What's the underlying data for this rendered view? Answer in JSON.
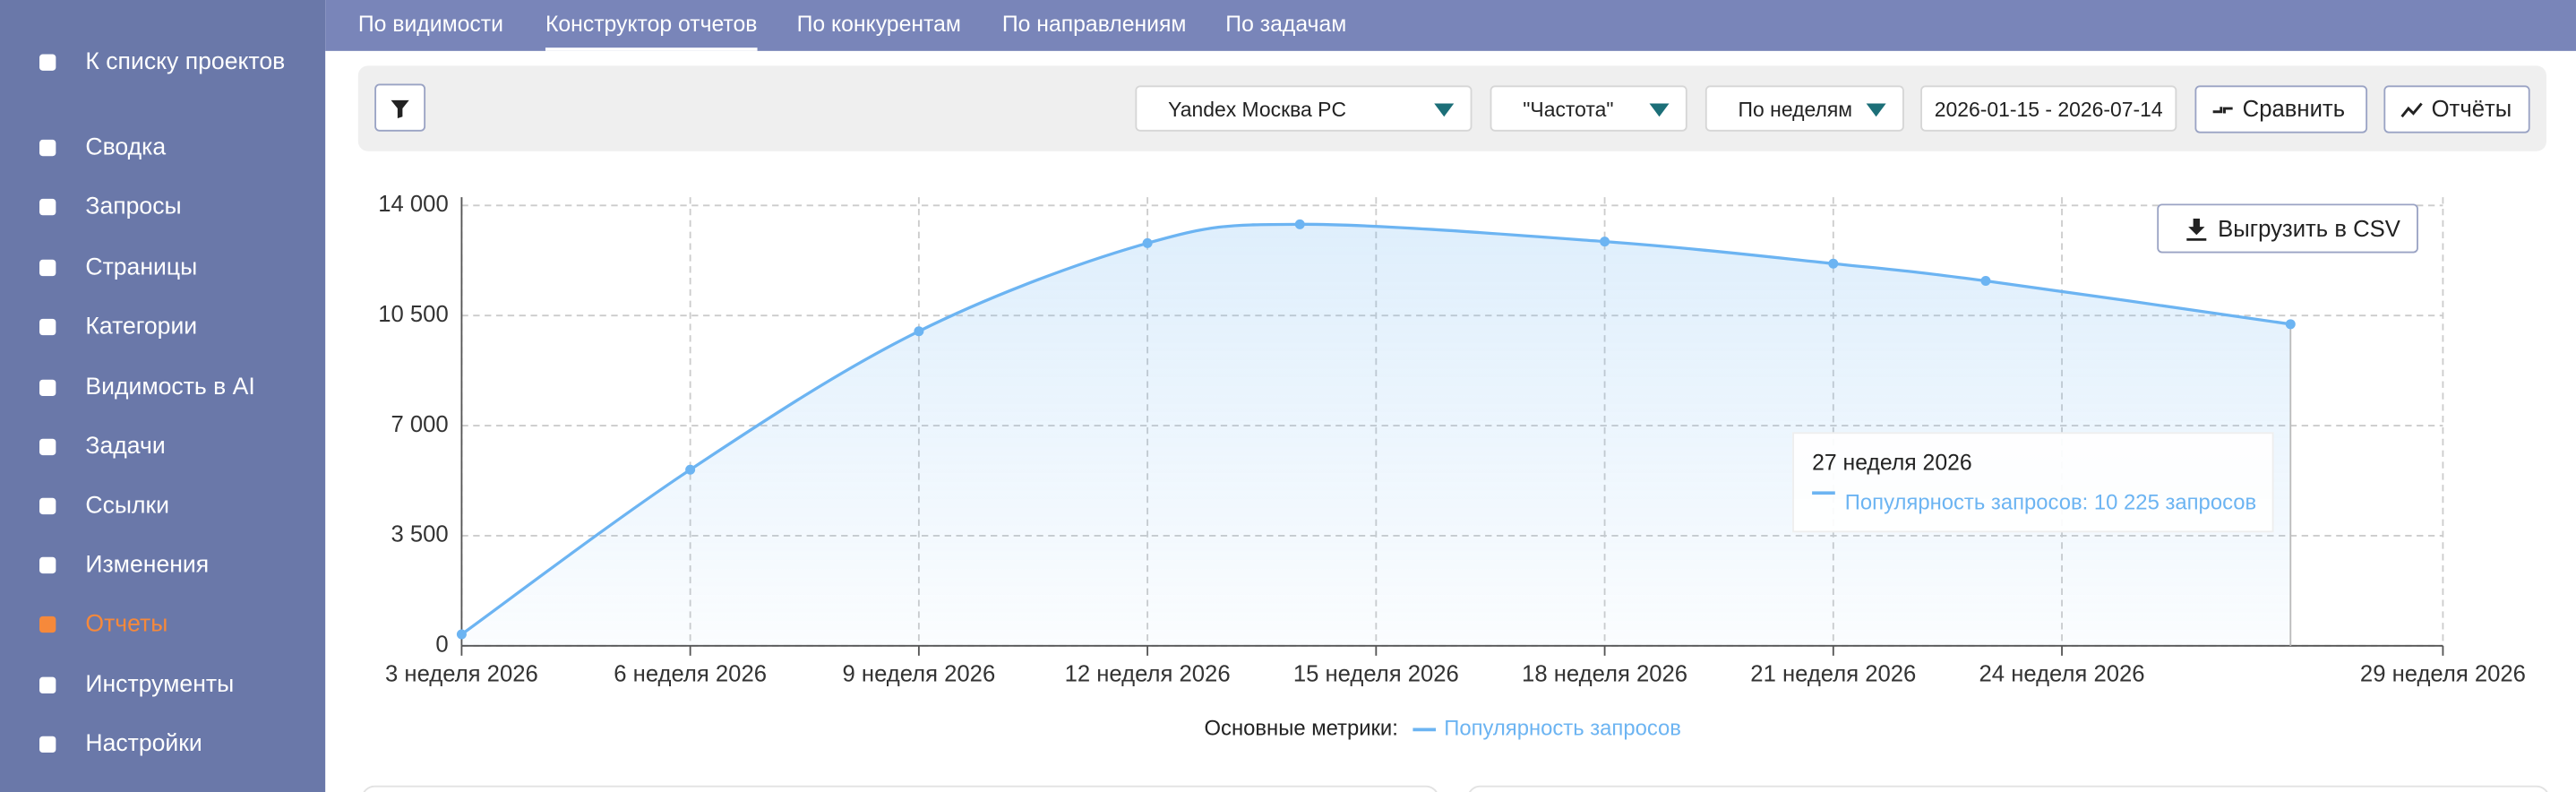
{
  "sidebar": {
    "items": [
      "К списку проектов",
      "Сводка",
      "Запросы",
      "Страницы",
      "Категории",
      "Видимость в AI",
      "Задачи",
      "Ссылки",
      "Изменения",
      "Отчеты",
      "Инструменты",
      "Настройки"
    ],
    "active": 9
  },
  "tabs": {
    "items": [
      "По видимости",
      "Конструктор отчетов",
      "По конкурентам",
      "По направлениям",
      "По задачам"
    ],
    "active": 1
  },
  "toolbar": {
    "region": "Yandex Москва PC",
    "metric": "\"Частота\"",
    "period": "По неделям",
    "dates": "2026-01-15 - 2026-07-14",
    "compare": "Сравнить",
    "reports": "Отчёты"
  },
  "export_button": "Выгрузить в CSV",
  "tooltip": {
    "title": "27 неделя 2026",
    "text": "Популярность запросов: 10 225 запросов"
  },
  "chart_data": {
    "type": "line",
    "x": [
      3,
      6,
      9,
      12,
      14,
      18,
      21,
      23,
      27
    ],
    "series": [
      {
        "name": "Популярность запросов",
        "color": "#6cb4f2",
        "values": [
          366,
          5600,
          10000,
          12800,
          13400,
          12850,
          12150,
          11600,
          10225
        ]
      }
    ],
    "xlim": [
      3,
      29
    ],
    "xticks": [
      {
        "value": 3,
        "label": "3 неделя 2026"
      },
      {
        "value": 6,
        "label": "6 неделя 2026"
      },
      {
        "value": 9,
        "label": "9 неделя 2026"
      },
      {
        "value": 12,
        "label": "12 неделя 2026"
      },
      {
        "value": 15,
        "label": "15 неделя 2026"
      },
      {
        "value": 18,
        "label": "18 неделя 2026"
      },
      {
        "value": 21,
        "label": "21 неделя 2026"
      },
      {
        "value": 24,
        "label": "24 неделя 2026"
      },
      {
        "value": 29,
        "label": "29 неделя 2026"
      }
    ],
    "ylim": [
      0,
      14000
    ],
    "yticks": [
      0,
      {
        "value": 3500,
        "label": "3 500"
      },
      {
        "value": 7000,
        "label": "7 000"
      },
      {
        "value": 10500,
        "label": "10 500"
      },
      {
        "value": 14000,
        "label": "14 000"
      }
    ],
    "grid": true,
    "legend_title": "Основные метрики:"
  }
}
